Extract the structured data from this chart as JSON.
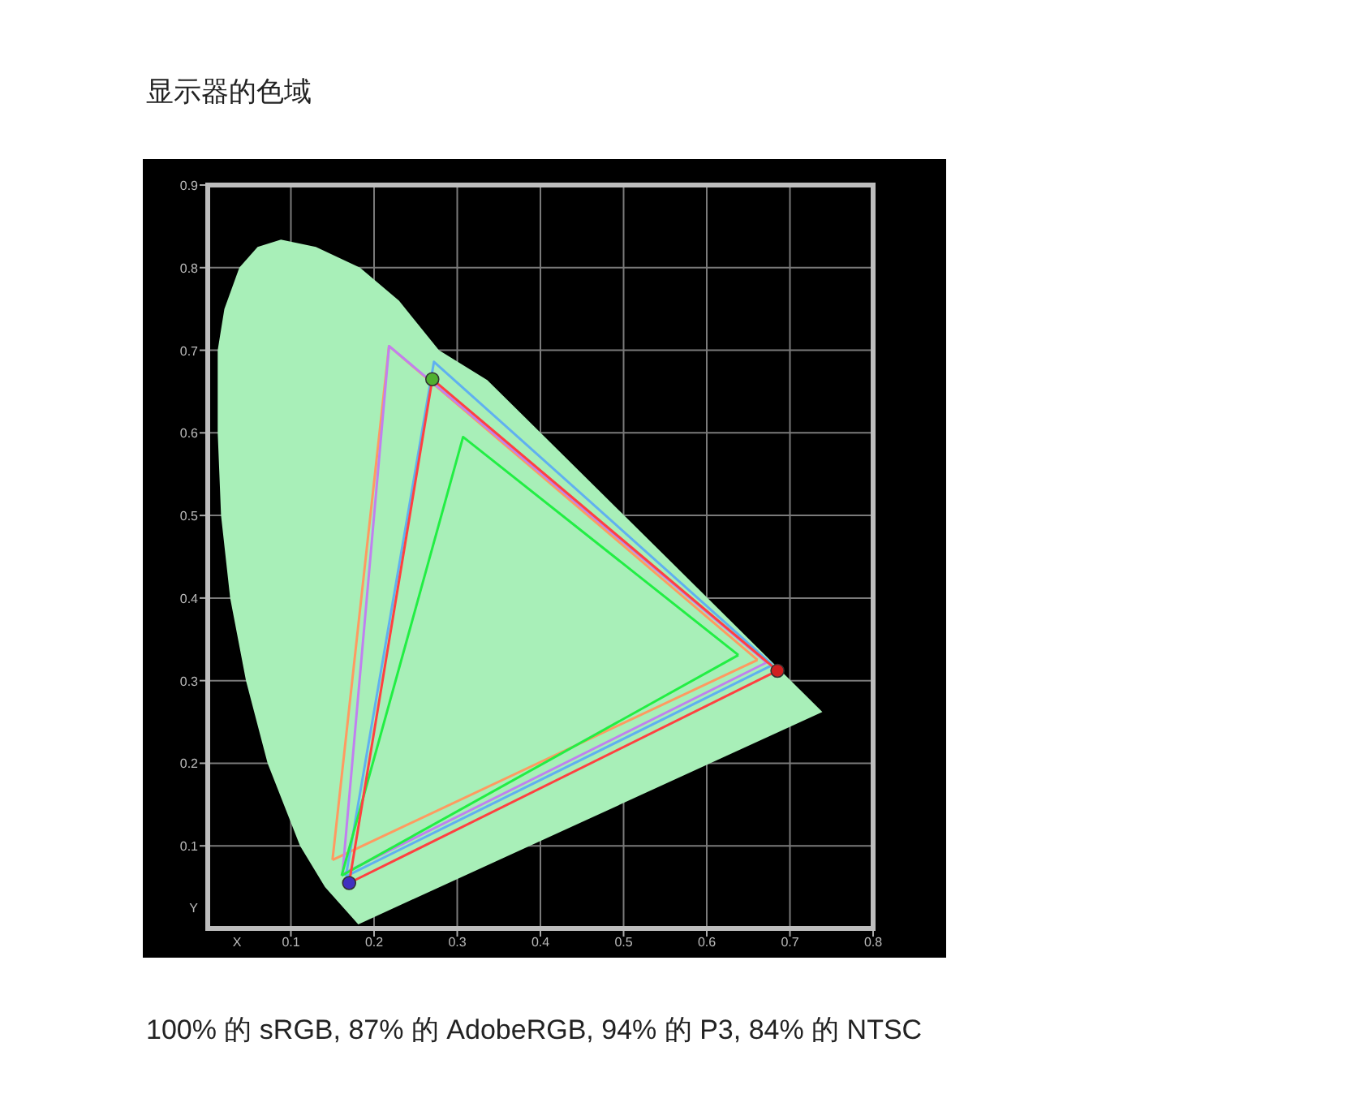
{
  "chart_data": {
    "type": "line",
    "title": "显示器的色域",
    "xlabel": "X",
    "ylabel": "Y",
    "annotations": [
      "100% 的 sRGB, 87% 的 AdobeRGB, 94% 的 P3, 84% 的 NTSC"
    ],
    "xlim": [
      0,
      0.8
    ],
    "ylim": [
      0,
      0.9
    ],
    "xticks": [
      0.1,
      0.2,
      0.3,
      0.4,
      0.5,
      0.6,
      0.7,
      0.8
    ],
    "yticks": [
      0.1,
      0.2,
      0.3,
      0.4,
      0.5,
      0.6,
      0.7,
      0.8,
      0.9
    ],
    "grid": true,
    "series": [
      {
        "type": "area",
        "color": "#a8efb8",
        "x": [
          0.181,
          0.141,
          0.111,
          0.072,
          0.046,
          0.027,
          0.016,
          0.012,
          0.012,
          0.02,
          0.038,
          0.06,
          0.088,
          0.13,
          0.183,
          0.23,
          0.278,
          0.336,
          0.56,
          0.739,
          0.181
        ],
        "values": [
          0.005,
          0.05,
          0.1,
          0.2,
          0.3,
          0.4,
          0.5,
          0.6,
          0.7,
          0.75,
          0.8,
          0.825,
          0.834,
          0.825,
          0.8,
          0.76,
          0.7,
          0.664,
          0.441,
          0.262,
          0.005
        ]
      },
      {
        "color": "#ff9a60",
        "x": [
          0.15,
          0.218,
          0.661
        ],
        "values": [
          0.083,
          0.705,
          0.325
        ]
      },
      {
        "color": "#ff9a60",
        "x": [
          0.15,
          0.661
        ],
        "values": [
          0.083,
          0.325
        ]
      },
      {
        "color": "#c080f0",
        "x": [
          0.162,
          0.218,
          0.672
        ],
        "values": [
          0.066,
          0.705,
          0.322
        ]
      },
      {
        "color": "#c080f0",
        "x": [
          0.162,
          0.672
        ],
        "values": [
          0.066,
          0.322
        ]
      },
      {
        "color": "#60b0f0",
        "x": [
          0.166,
          0.272,
          0.679
        ],
        "values": [
          0.063,
          0.686,
          0.319
        ]
      },
      {
        "color": "#60b0f0",
        "x": [
          0.166,
          0.679
        ],
        "values": [
          0.063,
          0.319
        ]
      },
      {
        "color": "#22ee44",
        "x": [
          0.161,
          0.307,
          0.638
        ],
        "values": [
          0.064,
          0.595,
          0.331
        ]
      },
      {
        "color": "#22ee44",
        "x": [
          0.161,
          0.638
        ],
        "values": [
          0.064,
          0.331
        ]
      },
      {
        "color": "#ff4040",
        "x": [
          0.17,
          0.27,
          0.685
        ],
        "values": [
          0.055,
          0.665,
          0.312
        ]
      },
      {
        "color": "#ff4040",
        "x": [
          0.17,
          0.685
        ],
        "values": [
          0.055,
          0.312
        ]
      },
      {
        "type": "scatter",
        "marker": "circle",
        "x": [
          0.27,
          0.685,
          0.17
        ],
        "values": [
          0.665,
          0.312,
          0.055
        ],
        "colors": [
          "#50b030",
          "#d02020",
          "#4030c0"
        ]
      }
    ]
  }
}
